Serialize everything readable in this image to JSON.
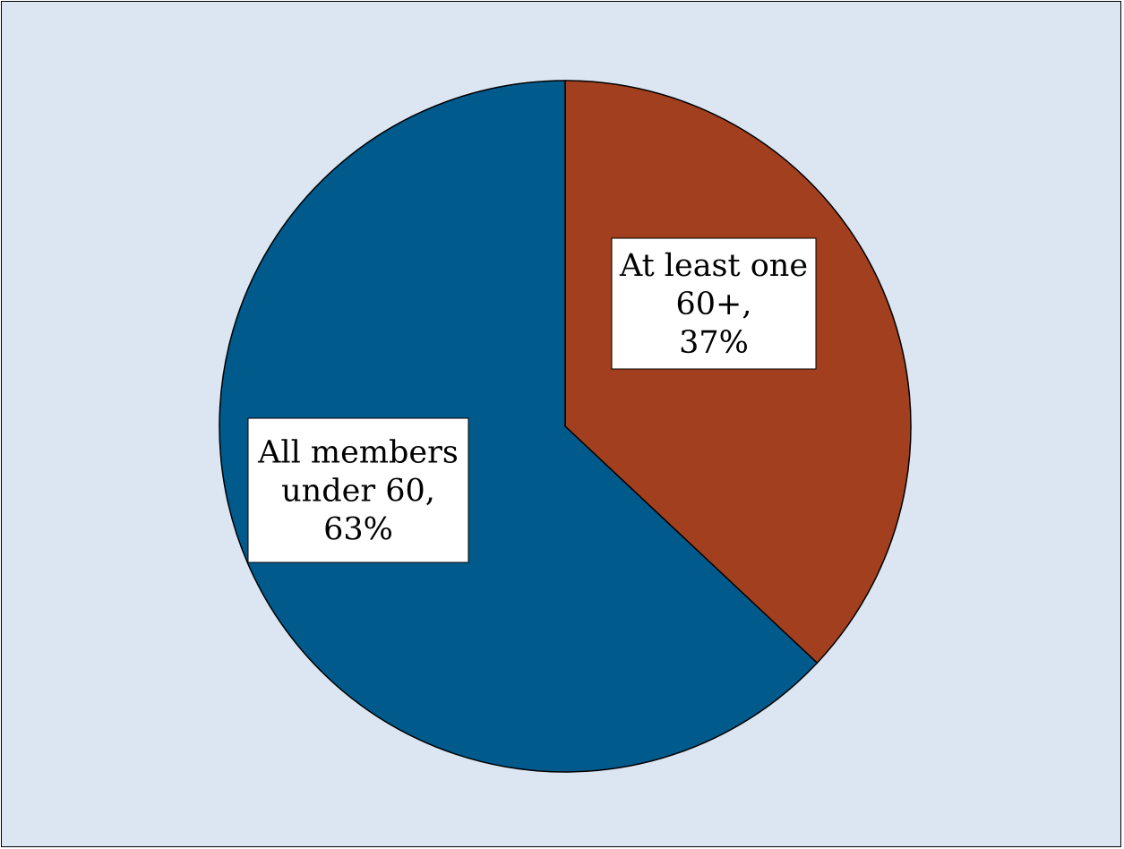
{
  "chart_data": {
    "type": "pie",
    "title": "",
    "start_angle_deg": 0,
    "direction": "clockwise",
    "slices": [
      {
        "label_lines": [
          "At least one",
          "60+,",
          "37%"
        ],
        "category": "At least one 60+",
        "value": 37,
        "color": "#a23f1f"
      },
      {
        "label_lines": [
          "All members",
          "under 60,",
          "63%"
        ],
        "category": "All members under 60",
        "value": 63,
        "color": "#005a8c"
      }
    ],
    "background_color": "#dce6f2",
    "outline_color": "#000000",
    "legend": "none",
    "data_labels": "boxed, inside slices"
  }
}
